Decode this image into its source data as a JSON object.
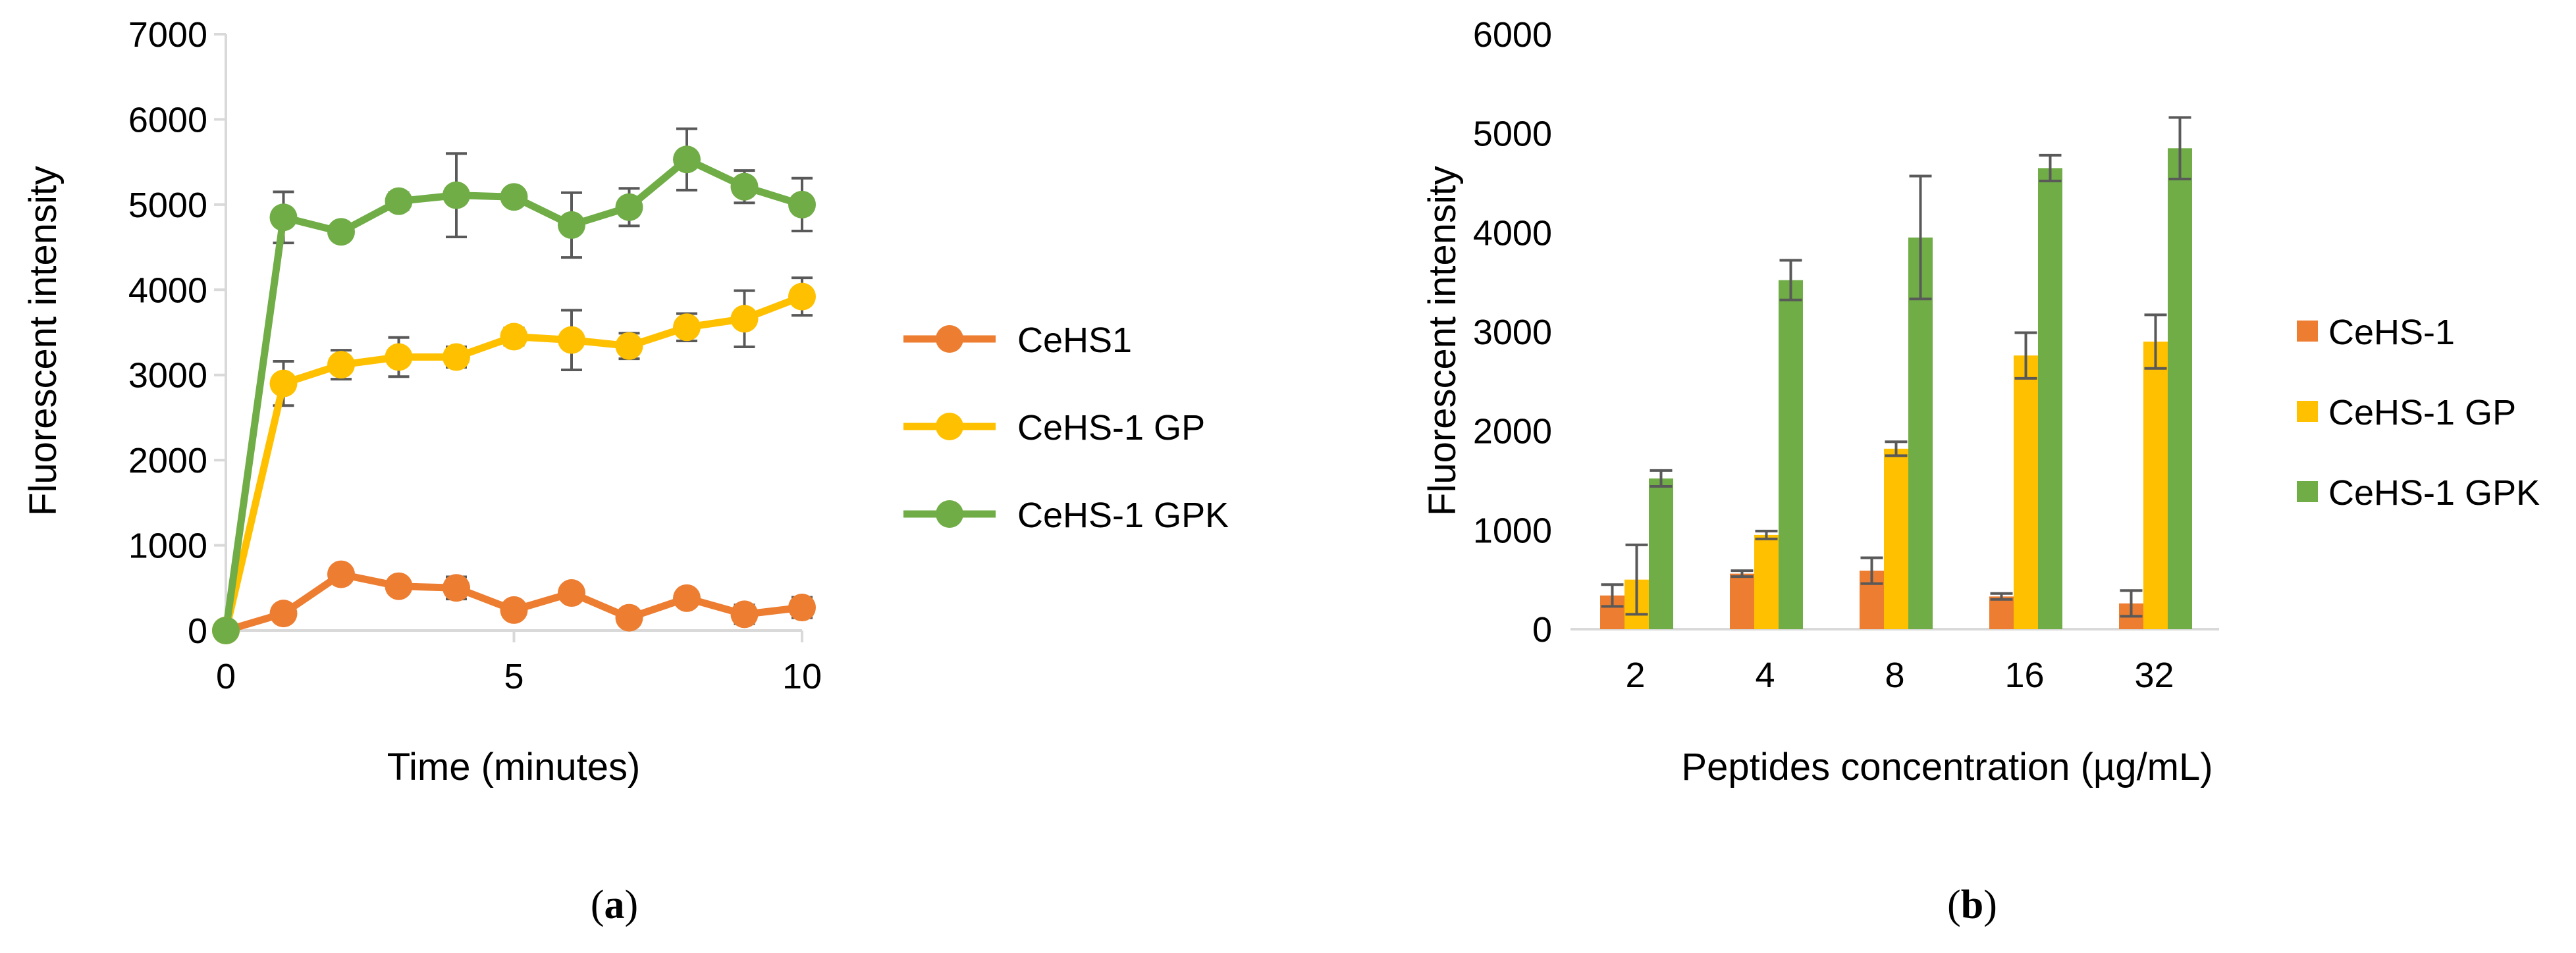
{
  "chart_data": [
    {
      "type": "line",
      "panel_label": "(a)",
      "panel_letter": "a",
      "xlabel": "Time (minutes)",
      "ylabel": "Fluorescent intensity",
      "xlim": [
        0,
        10
      ],
      "ylim": [
        0,
        7000
      ],
      "x_ticks": [
        0,
        5,
        10
      ],
      "y_ticks": [
        0,
        1000,
        2000,
        3000,
        4000,
        5000,
        6000,
        7000
      ],
      "grid": false,
      "legend_position": "right",
      "x": [
        0,
        1,
        2,
        3,
        4,
        5,
        6,
        7,
        8,
        9,
        10
      ],
      "series": [
        {
          "name": "CeHS1",
          "color": "#ed7d31",
          "values": [
            0,
            200,
            660,
            520,
            500,
            240,
            440,
            150,
            380,
            190,
            270
          ],
          "errors": [
            0,
            40,
            70,
            60,
            130,
            60,
            80,
            60,
            70,
            110,
            120
          ]
        },
        {
          "name": "CeHS-1 GP",
          "color": "#ffc000",
          "values": [
            0,
            2900,
            3120,
            3210,
            3210,
            3450,
            3410,
            3340,
            3560,
            3660,
            3920
          ],
          "errors": [
            0,
            260,
            170,
            230,
            120,
            100,
            350,
            150,
            160,
            330,
            220
          ]
        },
        {
          "name": "CeHS-1 GPK",
          "color": "#70ad47",
          "values": [
            0,
            4850,
            4680,
            5040,
            5110,
            5090,
            4760,
            4970,
            5530,
            5210,
            5000
          ],
          "errors": [
            0,
            300,
            60,
            100,
            490,
            80,
            380,
            220,
            360,
            190,
            310
          ]
        }
      ]
    },
    {
      "type": "bar",
      "panel_label": "(b)",
      "panel_letter": "b",
      "xlabel": "Peptides concentration (µg/mL)",
      "ylabel": "Fluorescent intensity",
      "ylim": [
        0,
        6000
      ],
      "y_ticks": [
        0,
        1000,
        2000,
        3000,
        4000,
        5000,
        6000
      ],
      "grid": false,
      "legend_position": "right",
      "categories": [
        "2",
        "4",
        "8",
        "16",
        "32"
      ],
      "series": [
        {
          "name": "CeHS-1",
          "color": "#ed7d31",
          "values": [
            340,
            560,
            590,
            330,
            260
          ],
          "errors": [
            110,
            30,
            130,
            30,
            130
          ]
        },
        {
          "name": "CeHS-1 GP",
          "color": "#ffc000",
          "values": [
            500,
            950,
            1820,
            2760,
            2900
          ],
          "errors": [
            350,
            40,
            70,
            230,
            270
          ]
        },
        {
          "name": "CeHS-1 GPK",
          "color": "#70ad47",
          "values": [
            1520,
            3520,
            3950,
            4650,
            4850
          ],
          "errors": [
            80,
            200,
            620,
            130,
            310
          ]
        }
      ]
    }
  ]
}
